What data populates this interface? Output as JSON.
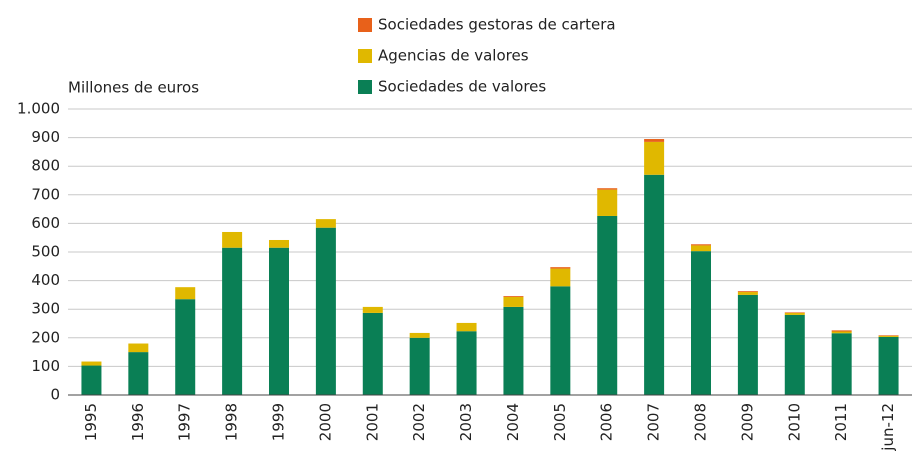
{
  "chart_data": {
    "type": "bar",
    "stacked": true,
    "y_axis_label": "Millones de euros",
    "categories": [
      "1995",
      "1996",
      "1997",
      "1998",
      "1999",
      "2000",
      "2001",
      "2002",
      "2003",
      "2004",
      "2005",
      "2006",
      "2007",
      "2008",
      "2009",
      "2010",
      "2011",
      "jun-12"
    ],
    "series": [
      {
        "name": "Sociedades de valores",
        "color": "#0a7f55",
        "values": [
          103,
          150,
          335,
          515,
          515,
          585,
          287,
          200,
          223,
          308,
          380,
          626,
          770,
          503,
          350,
          280,
          216,
          203
        ]
      },
      {
        "name": "Agencias de valores",
        "color": "#e0b800",
        "values": [
          14,
          30,
          42,
          55,
          27,
          30,
          21,
          17,
          29,
          35,
          62,
          92,
          115,
          20,
          10,
          7,
          6,
          4
        ]
      },
      {
        "name": "Sociedades gestoras de cartera",
        "color": "#e8611a",
        "values": [
          0,
          0,
          0,
          0,
          0,
          0,
          0,
          0,
          0,
          3,
          5,
          5,
          10,
          4,
          3,
          2,
          4,
          2
        ]
      }
    ],
    "ylim": [
      0,
      1000
    ],
    "yticks": [
      0,
      100,
      200,
      300,
      400,
      500,
      600,
      700,
      800,
      900,
      {
        "value": 1000,
        "label": "1.000"
      }
    ],
    "grid": true
  }
}
